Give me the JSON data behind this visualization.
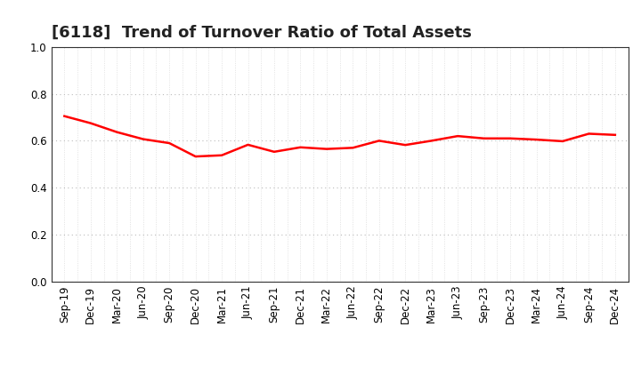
{
  "title": "[6118]  Trend of Turnover Ratio of Total Assets",
  "x_labels": [
    "Sep-19",
    "Dec-19",
    "Mar-20",
    "Jun-20",
    "Sep-20",
    "Dec-20",
    "Mar-21",
    "Jun-21",
    "Sep-21",
    "Dec-21",
    "Mar-22",
    "Jun-22",
    "Sep-22",
    "Dec-22",
    "Mar-23",
    "Jun-23",
    "Sep-23",
    "Dec-23",
    "Mar-24",
    "Jun-24",
    "Sep-24",
    "Dec-24"
  ],
  "y_values": [
    0.705,
    0.675,
    0.637,
    0.607,
    0.59,
    0.533,
    0.538,
    0.583,
    0.553,
    0.572,
    0.565,
    0.57,
    0.6,
    0.582,
    0.6,
    0.62,
    0.61,
    0.61,
    0.605,
    0.598,
    0.63,
    0.625
  ],
  "line_color": "#FF0000",
  "line_width": 1.8,
  "ylim": [
    0.0,
    1.0
  ],
  "yticks": [
    0.0,
    0.2,
    0.4,
    0.6,
    0.8,
    1.0
  ],
  "background_color": "#ffffff",
  "grid_major_color": "#bbbbbb",
  "grid_minor_color": "#cccccc",
  "title_fontsize": 13,
  "tick_fontsize": 8.5,
  "title_color": "#222222"
}
